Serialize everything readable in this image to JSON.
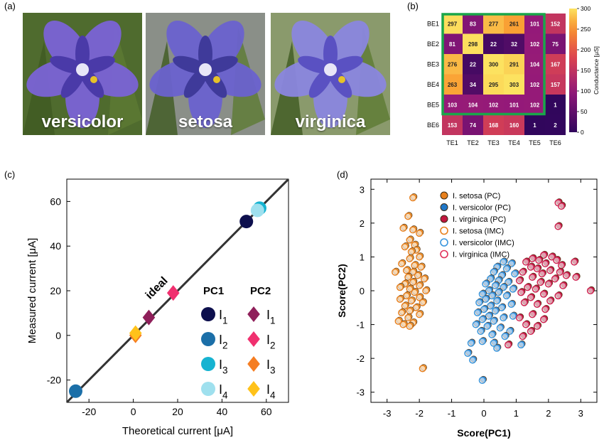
{
  "panels": {
    "a": "(a)",
    "b": "(b)",
    "c": "(c)",
    "d": "(d)"
  },
  "photos": [
    {
      "caption": "versicolor",
      "petal": "#7a63d6",
      "center": "#4a3aa8",
      "bg": "#4f6b2e"
    },
    {
      "caption": "setosa",
      "petal": "#6a62cf",
      "center": "#3f3a9a",
      "bg": "#8a8f88"
    },
    {
      "caption": "virginica",
      "petal": "#8a86df",
      "center": "#5a51c2",
      "bg": "#8a9a6c"
    }
  ],
  "heatmap": {
    "rows": [
      "BE1",
      "BE2",
      "BE3",
      "BE4",
      "BE5",
      "BE6"
    ],
    "cols": [
      "TE1",
      "TE2",
      "TE3",
      "TE4",
      "TE5",
      "TE6"
    ],
    "values": [
      [
        297,
        83,
        277,
        261,
        101,
        152
      ],
      [
        81,
        298,
        22,
        32,
        102,
        75
      ],
      [
        276,
        22,
        300,
        291,
        104,
        167
      ],
      [
        263,
        34,
        295,
        303,
        102,
        157
      ],
      [
        103,
        104,
        102,
        101,
        102,
        1
      ],
      [
        153,
        74,
        168,
        160,
        1,
        2
      ]
    ],
    "colorbar_ticks": [
      0,
      50,
      100,
      150,
      200,
      250,
      300
    ],
    "colorbar_label": "Conductance [μS]",
    "highlight_color": "#1aa64a"
  },
  "chart_data": [
    {
      "type": "scatter",
      "xlabel": "Theoretical current [μA]",
      "ylabel": "Measured current [μA]",
      "xlim": [
        -30,
        70
      ],
      "ylim": [
        -30,
        70
      ],
      "xticks": [
        -20,
        0,
        20,
        40,
        60
      ],
      "yticks": [
        -20,
        0,
        20,
        40,
        60
      ],
      "annotation": "ideal",
      "legend_headers": [
        "PC1",
        "PC2"
      ],
      "legend_labels": [
        "I1",
        "I2",
        "I3",
        "I4"
      ],
      "ideal_line": [
        [
          -30,
          -30
        ],
        [
          70,
          70
        ]
      ],
      "series": [
        {
          "name": "PC1",
          "marker": "circle",
          "points": [
            [
              51,
              51,
              "#0d0f4d"
            ],
            [
              -26,
              -25,
              "#1b6fa8"
            ],
            [
              57,
              57,
              "#16b3d1"
            ],
            [
              56,
              56,
              "#9fe0ee"
            ]
          ]
        },
        {
          "name": "PC2",
          "marker": "diamond",
          "points": [
            [
              7,
              8,
              "#8f1f5a"
            ],
            [
              18,
              19,
              "#f0306f"
            ],
            [
              1,
              0,
              "#f57d22"
            ],
            [
              1,
              1,
              "#ffc21a"
            ]
          ]
        }
      ]
    },
    {
      "type": "scatter",
      "xlabel": "Score(PC1)",
      "ylabel": "Score(PC2)",
      "xlim": [
        -3.5,
        3.5
      ],
      "ylim": [
        -3.3,
        3.3
      ],
      "xticks": [
        -3,
        -2,
        -1,
        0,
        1,
        2,
        3
      ],
      "yticks": [
        -3,
        -2,
        -1,
        0,
        1,
        2,
        3
      ],
      "legend": [
        {
          "name": "I. setosa (PC)",
          "color": "#e8811e",
          "filled": true
        },
        {
          "name": "I. versicolor (PC)",
          "color": "#1f77c7",
          "filled": true
        },
        {
          "name": "I. virginica (PC)",
          "color": "#c2163f",
          "filled": true
        },
        {
          "name": "I. setosa (IMC)",
          "color": "#e8811e",
          "filled": false
        },
        {
          "name": "I. versicolor (IMC)",
          "color": "#3a96dd",
          "filled": false
        },
        {
          "name": "I. virginica (IMC)",
          "color": "#e0325a",
          "filled": false
        }
      ],
      "series": [
        {
          "name": "I. setosa",
          "color": "#e8811e",
          "points": [
            [
              -2.2,
              2.75
            ],
            [
              -2.35,
              2.2
            ],
            [
              -2.5,
              1.85
            ],
            [
              -2.2,
              1.8
            ],
            [
              -2.0,
              1.7
            ],
            [
              -2.3,
              1.5
            ],
            [
              -2.15,
              1.35
            ],
            [
              -2.45,
              1.3
            ],
            [
              -2.1,
              1.2
            ],
            [
              -2.25,
              1.15
            ],
            [
              -2.0,
              1.0
            ],
            [
              -2.3,
              0.95
            ],
            [
              -2.55,
              0.8
            ],
            [
              -2.15,
              0.75
            ],
            [
              -1.95,
              0.7
            ],
            [
              -2.4,
              0.6
            ],
            [
              -2.2,
              0.55
            ],
            [
              -2.75,
              0.55
            ],
            [
              -2.05,
              0.45
            ],
            [
              -2.35,
              0.4
            ],
            [
              -1.85,
              0.35
            ],
            [
              -2.2,
              0.25
            ],
            [
              -2.45,
              0.2
            ],
            [
              -2.0,
              0.15
            ],
            [
              -2.6,
              0.1
            ],
            [
              -2.3,
              0.05
            ],
            [
              -1.8,
              0.0
            ],
            [
              -2.15,
              -0.05
            ],
            [
              -2.4,
              -0.15
            ],
            [
              -2.0,
              -0.2
            ],
            [
              -2.6,
              -0.25
            ],
            [
              -2.25,
              -0.3
            ],
            [
              -1.9,
              -0.35
            ],
            [
              -2.45,
              -0.45
            ],
            [
              -2.1,
              -0.5
            ],
            [
              -2.3,
              -0.6
            ],
            [
              -2.55,
              -0.65
            ],
            [
              -2.0,
              -0.7
            ],
            [
              -2.35,
              -0.8
            ],
            [
              -2.65,
              -0.9
            ],
            [
              -2.2,
              -0.95
            ],
            [
              -2.5,
              -1.0
            ],
            [
              -2.3,
              -1.05
            ],
            [
              -1.9,
              -2.3
            ]
          ]
        },
        {
          "name": "I. versicolor",
          "color": "#3a96dd",
          "points": [
            [
              0.6,
              0.85
            ],
            [
              0.85,
              0.8
            ],
            [
              0.4,
              0.7
            ],
            [
              0.7,
              0.65
            ],
            [
              0.3,
              0.55
            ],
            [
              0.55,
              0.45
            ],
            [
              0.95,
              0.5
            ],
            [
              0.2,
              0.35
            ],
            [
              0.45,
              0.3
            ],
            [
              0.75,
              0.25
            ],
            [
              0.05,
              0.2
            ],
            [
              0.35,
              0.15
            ],
            [
              0.6,
              0.1
            ],
            [
              0.9,
              0.05
            ],
            [
              0.15,
              0.0
            ],
            [
              0.45,
              -0.05
            ],
            [
              -0.05,
              -0.1
            ],
            [
              0.25,
              -0.15
            ],
            [
              0.7,
              -0.15
            ],
            [
              0.05,
              -0.25
            ],
            [
              0.4,
              -0.3
            ],
            [
              -0.15,
              -0.35
            ],
            [
              0.2,
              -0.45
            ],
            [
              0.55,
              -0.5
            ],
            [
              0.85,
              -0.4
            ],
            [
              0.0,
              -0.55
            ],
            [
              0.35,
              -0.6
            ],
            [
              -0.2,
              -0.65
            ],
            [
              0.15,
              -0.75
            ],
            [
              0.6,
              -0.8
            ],
            [
              0.9,
              -0.75
            ],
            [
              -0.05,
              -0.85
            ],
            [
              0.3,
              -0.9
            ],
            [
              -0.25,
              -1.0
            ],
            [
              0.1,
              -1.05
            ],
            [
              0.5,
              -1.1
            ],
            [
              0.8,
              -1.2
            ],
            [
              -0.1,
              -1.2
            ],
            [
              0.25,
              -1.3
            ],
            [
              0.65,
              -1.35
            ],
            [
              -0.05,
              -1.5
            ],
            [
              0.3,
              -1.55
            ],
            [
              -0.4,
              -1.55
            ],
            [
              0.4,
              -1.7
            ],
            [
              1.15,
              -1.6
            ],
            [
              -0.5,
              -1.85
            ],
            [
              -0.35,
              -2.05
            ],
            [
              -0.05,
              -2.65
            ]
          ]
        },
        {
          "name": "I. virginica",
          "color": "#d02352",
          "points": [
            [
              2.3,
              2.6
            ],
            [
              2.4,
              2.5
            ],
            [
              2.3,
              1.9
            ],
            [
              1.85,
              1.05
            ],
            [
              2.1,
              1.0
            ],
            [
              1.5,
              0.95
            ],
            [
              1.7,
              0.9
            ],
            [
              2.25,
              0.9
            ],
            [
              1.3,
              0.85
            ],
            [
              2.8,
              0.85
            ],
            [
              1.9,
              0.8
            ],
            [
              2.4,
              0.75
            ],
            [
              1.45,
              0.7
            ],
            [
              1.65,
              0.65
            ],
            [
              2.05,
              0.6
            ],
            [
              2.35,
              0.55
            ],
            [
              1.2,
              0.55
            ],
            [
              1.8,
              0.5
            ],
            [
              2.55,
              0.45
            ],
            [
              1.5,
              0.4
            ],
            [
              2.2,
              0.35
            ],
            [
              2.85,
              0.4
            ],
            [
              1.1,
              0.3
            ],
            [
              1.75,
              0.25
            ],
            [
              2.0,
              0.2
            ],
            [
              2.45,
              0.15
            ],
            [
              1.35,
              0.1
            ],
            [
              1.6,
              0.05
            ],
            [
              3.3,
              0.0
            ],
            [
              1.15,
              -0.05
            ],
            [
              1.85,
              -0.1
            ],
            [
              2.3,
              -0.15
            ],
            [
              1.45,
              -0.2
            ],
            [
              2.05,
              -0.3
            ],
            [
              1.25,
              -0.35
            ],
            [
              1.65,
              -0.4
            ],
            [
              1.9,
              -0.55
            ],
            [
              1.5,
              -0.7
            ],
            [
              1.1,
              -0.8
            ],
            [
              1.85,
              -0.85
            ],
            [
              1.3,
              -1.0
            ],
            [
              1.65,
              -1.05
            ],
            [
              1.45,
              -1.2
            ],
            [
              1.2,
              -1.35
            ],
            [
              0.75,
              -1.6
            ]
          ]
        }
      ]
    }
  ]
}
